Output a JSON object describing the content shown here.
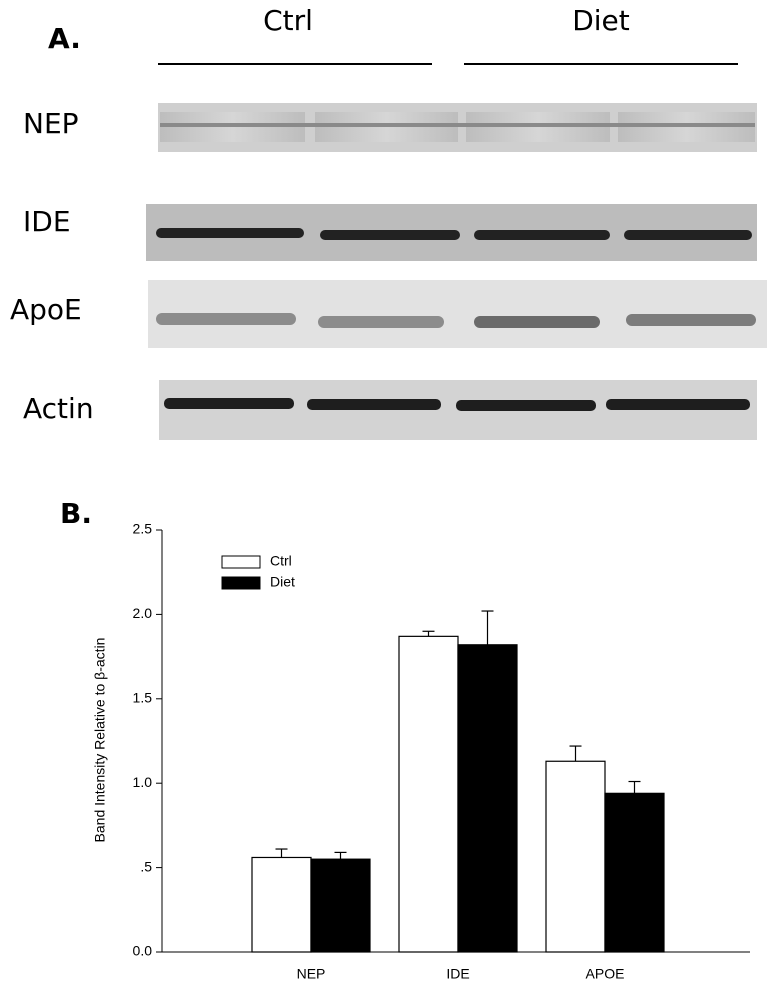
{
  "panel_a": {
    "label": "A.",
    "groups": [
      "Ctrl",
      "Diet"
    ],
    "rows": [
      "NEP",
      "IDE",
      "ApoE",
      "Actin"
    ]
  },
  "chart_data": {
    "type": "bar",
    "label": "B.",
    "y_label": "Band Intensity Relative to β-actin",
    "categories": [
      "NEP",
      "IDE",
      "APOE"
    ],
    "series": [
      {
        "name": "Ctrl",
        "color": "#ffffff",
        "values": [
          0.56,
          1.87,
          1.13
        ],
        "errors": [
          0.05,
          0.03,
          0.09
        ]
      },
      {
        "name": "Diet",
        "color": "#000000",
        "values": [
          0.55,
          1.82,
          0.94
        ],
        "errors": [
          0.04,
          0.2,
          0.07
        ]
      }
    ],
    "ylim": [
      0,
      2.5
    ],
    "yticks": [
      {
        "value": 0,
        "label": "0.0"
      },
      {
        "value": 0.5,
        "label": ".5"
      },
      {
        "value": 1,
        "label": "1.0"
      },
      1.5,
      {
        "value": 2,
        "label": "2.0"
      },
      2.5
    ],
    "legend": "upper left"
  }
}
